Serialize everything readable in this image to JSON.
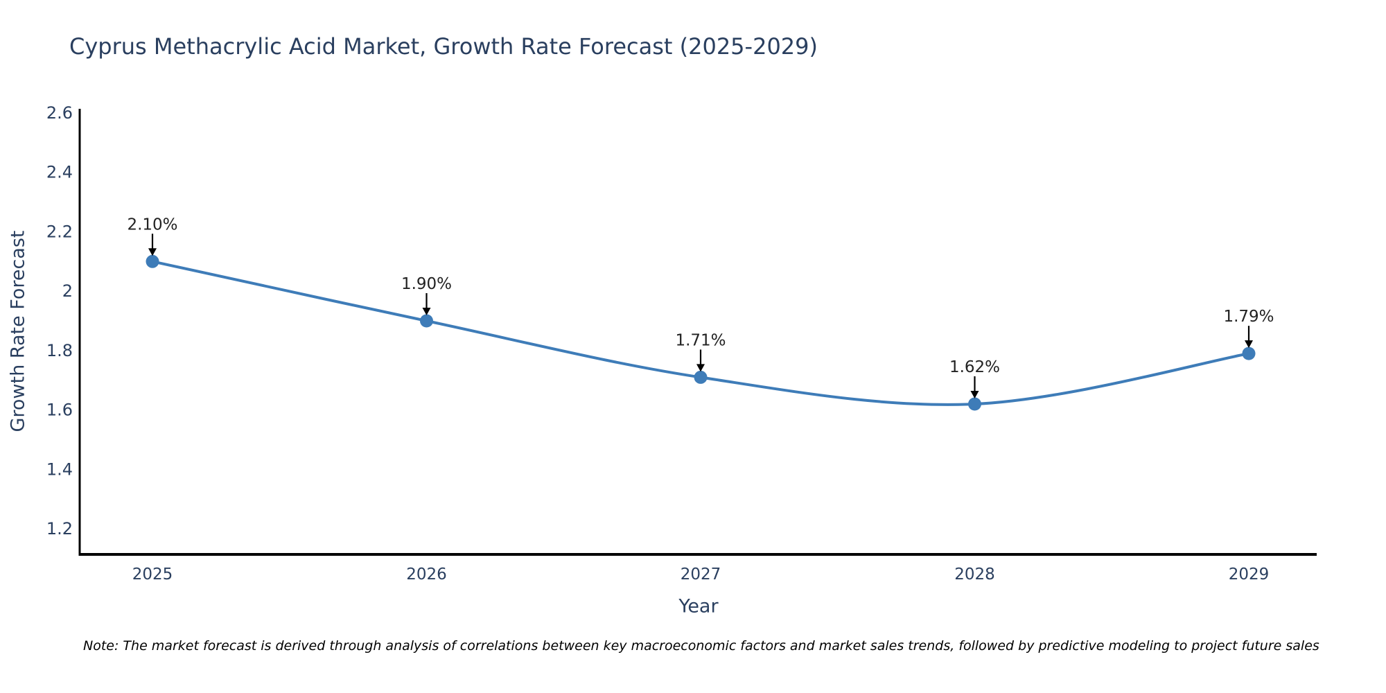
{
  "page": {
    "background": "#ffffff"
  },
  "chart_data": {
    "type": "line",
    "title": "Cyprus Methacrylic Acid Market, Growth Rate Forecast (2025-2029)",
    "xlabel": "Year",
    "ylabel": "Growth Rate Forecast",
    "categories": [
      "2025",
      "2026",
      "2027",
      "2028",
      "2029"
    ],
    "values": [
      2.1,
      1.9,
      1.71,
      1.62,
      1.79
    ],
    "point_labels": [
      "2.10%",
      "1.90%",
      "1.71%",
      "1.62%",
      "1.79%"
    ],
    "yticks": [
      2.6,
      2.4,
      2.2,
      2.0,
      1.8,
      1.6,
      1.4,
      1.2
    ],
    "ytick_labels": [
      "2.6",
      "2.4",
      "2.2",
      "2",
      "1.8",
      "1.6",
      "1.4",
      "1.2"
    ],
    "ylim": [
      1.11,
      2.61
    ],
    "line_shape": "spline",
    "grid": false,
    "legend_position": "none",
    "colors": {
      "line": "#3e7cb8",
      "marker": "#3e7cb8",
      "axis_line": "#000000",
      "title_text": "#2a3f5f",
      "tick_text": "#2a3f5f",
      "annotation_text": "#222222",
      "annotation_arrow": "#000000",
      "note_text": "#000000"
    },
    "note": "Note: The market forecast is derived through analysis of correlations between key macroeconomic factors and market sales trends, followed by predictive modeling to project future sales"
  }
}
